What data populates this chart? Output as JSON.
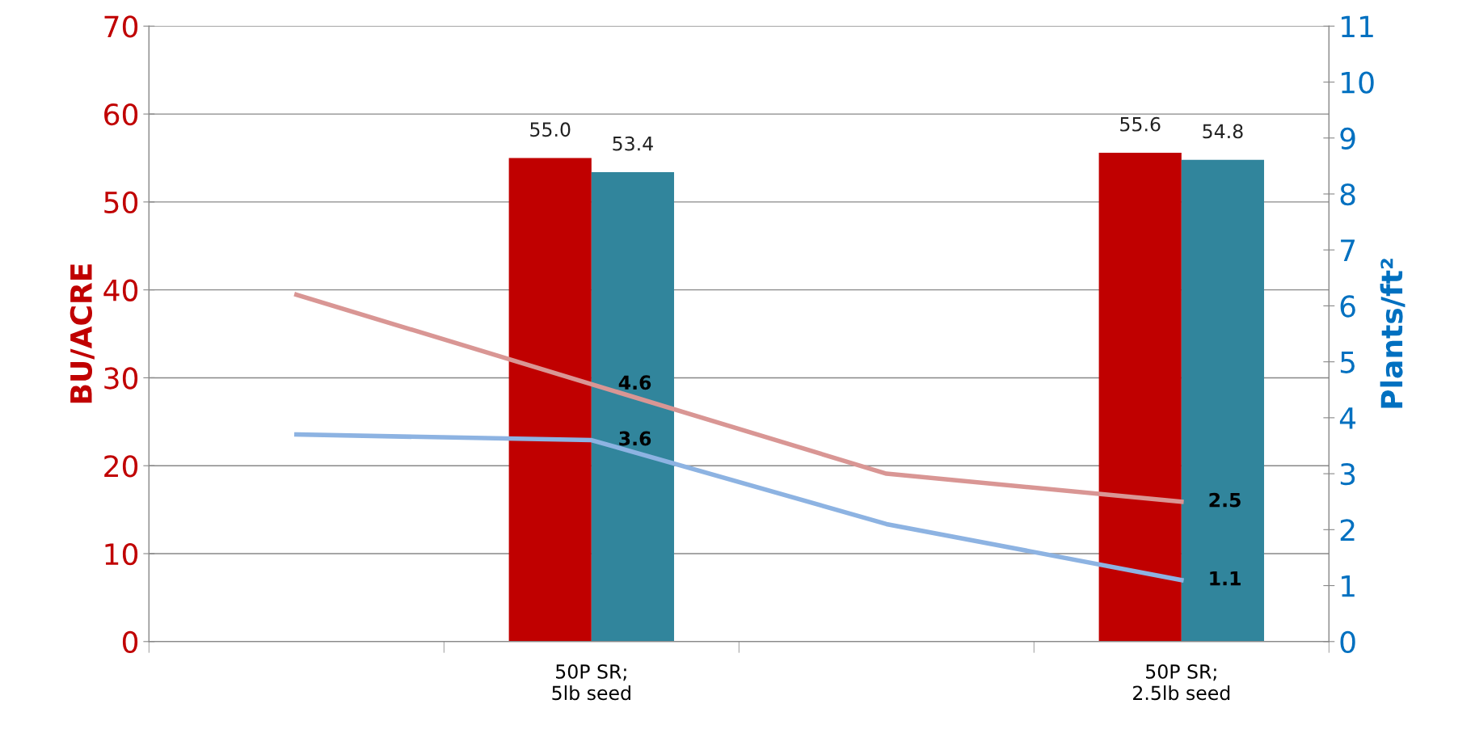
{
  "chart_data": {
    "type": "bar",
    "ylabel": "BU/ACRE",
    "y2label": "Plants/ft²",
    "categories": [
      null,
      "50P SR;\n5lb seed",
      null,
      "50P SR;\n2.5lb seed"
    ],
    "series": [
      {
        "color": "#c00000",
        "values": [
          null,
          55.0,
          null,
          55.6
        ],
        "value_labels": [
          null,
          "55.0",
          null,
          "55.6"
        ]
      },
      {
        "color": "#31859c",
        "values": [
          null,
          53.4,
          null,
          54.8
        ],
        "value_labels": [
          null,
          "53.4",
          null,
          "54.8"
        ]
      },
      {
        "type": "line",
        "axis": "y2",
        "color": "#d99694",
        "values": [
          6.2,
          4.6,
          3.0,
          2.5
        ],
        "value_labels": [
          null,
          "4.6",
          null,
          "2.5"
        ]
      },
      {
        "type": "line",
        "axis": "y2",
        "color": "#8db3e2",
        "values": [
          3.7,
          3.6,
          2.1,
          1.1
        ],
        "value_labels": [
          null,
          "3.6",
          null,
          "1.1"
        ]
      }
    ],
    "ylim": [
      0,
      70
    ],
    "yticks": [
      0,
      10,
      20,
      30,
      40,
      50,
      60,
      70
    ],
    "y2lim": [
      0,
      11
    ],
    "y2ticks": [
      0,
      1,
      2,
      3,
      4,
      5,
      6,
      7,
      8,
      9,
      10,
      11
    ],
    "grid": "y"
  }
}
